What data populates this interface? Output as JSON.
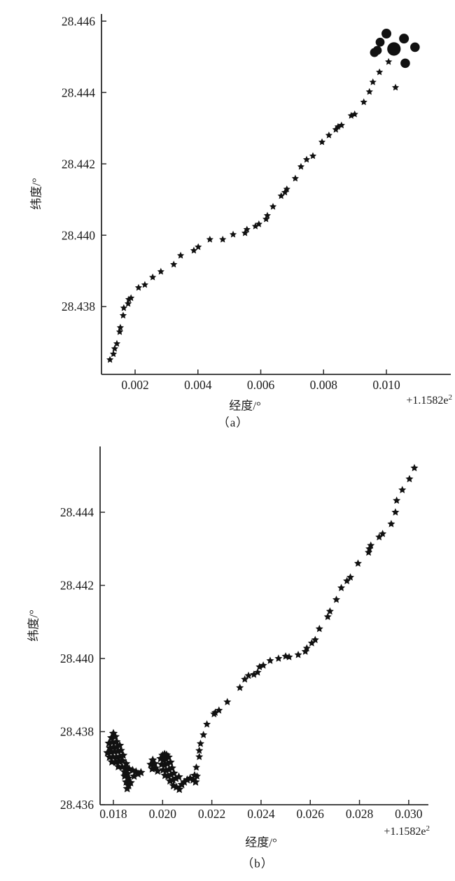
{
  "figure": {
    "background": "#ffffff",
    "text_color": "#1a1a1a",
    "axis_color": "#2b2b2b",
    "marker_color": "#111111"
  },
  "chart_data": [
    {
      "id": "a",
      "type": "scatter",
      "caption": "（a）",
      "xlabel": "经度/°",
      "ylabel": "纬度/°",
      "x_offset_base": "+1.1582e",
      "x_offset_exp": "2",
      "grid": false,
      "legend": null,
      "xlim": [
        0.00093,
        0.01205
      ],
      "ylim": [
        28.4361,
        28.4462
      ],
      "xticks": [
        0.002,
        0.004,
        0.006,
        0.008,
        0.01
      ],
      "xtick_labels": [
        "0.002",
        "0.004",
        "0.006",
        "0.008",
        "0.010"
      ],
      "yticks": [
        28.438,
        28.44,
        28.442,
        28.444,
        28.446
      ],
      "ytick_labels": [
        "28.438",
        "28.440",
        "28.442",
        "28.444",
        "28.446"
      ],
      "series": [
        {
          "name": "trajectory-stars",
          "marker": "star",
          "size": 5.4,
          "points": [
            [
              0.0012,
              28.43651
            ],
            [
              0.00131,
              28.43667
            ],
            [
              0.00135,
              28.43682
            ],
            [
              0.00142,
              28.43696
            ],
            [
              0.00151,
              28.43729
            ],
            [
              0.00153,
              28.43741
            ],
            [
              0.00162,
              28.43775
            ],
            [
              0.00164,
              28.43796
            ],
            [
              0.00178,
              28.43808
            ],
            [
              0.0018,
              28.4382
            ],
            [
              0.00187,
              28.43824
            ],
            [
              0.00211,
              28.43853
            ],
            [
              0.00231,
              28.43861
            ],
            [
              0.00256,
              28.43882
            ],
            [
              0.00282,
              28.43898
            ],
            [
              0.00323,
              28.43918
            ],
            [
              0.00345,
              28.43943
            ],
            [
              0.00387,
              28.43957
            ],
            [
              0.00401,
              28.43967
            ],
            [
              0.00438,
              28.43988
            ],
            [
              0.00479,
              28.43988
            ],
            [
              0.00512,
              28.44002
            ],
            [
              0.0055,
              28.44006
            ],
            [
              0.00556,
              28.44016
            ],
            [
              0.00583,
              28.44025
            ],
            [
              0.00594,
              28.44031
            ],
            [
              0.00617,
              28.44045
            ],
            [
              0.00621,
              28.44055
            ],
            [
              0.00639,
              28.4408
            ],
            [
              0.00665,
              28.4411
            ],
            [
              0.00677,
              28.4412
            ],
            [
              0.00683,
              28.44129
            ],
            [
              0.0071,
              28.44159
            ],
            [
              0.00728,
              28.44192
            ],
            [
              0.00746,
              28.44212
            ],
            [
              0.00766,
              28.44222
            ],
            [
              0.00795,
              28.44261
            ],
            [
              0.00817,
              28.4428
            ],
            [
              0.00839,
              28.44296
            ],
            [
              0.00846,
              28.44304
            ],
            [
              0.00857,
              28.44308
            ],
            [
              0.00888,
              28.44335
            ],
            [
              0.00899,
              28.44339
            ],
            [
              0.00928,
              28.44373
            ],
            [
              0.00946,
              28.44402
            ],
            [
              0.00957,
              28.44429
            ],
            [
              0.00978,
              28.44457
            ],
            [
              0.01007,
              28.44486
            ],
            [
              0.01029,
              28.44414
            ]
          ]
        },
        {
          "name": "endpoint-circles",
          "marker": "circle",
          "size": 6.4,
          "sizes": [
            6.4,
            6.4,
            6.4,
            7.0,
            9.6,
            7.0,
            6.8,
            6.8
          ],
          "points": [
            [
              0.00962,
              28.44512
            ],
            [
              0.00971,
              28.44518
            ],
            [
              0.0098,
              28.44541
            ],
            [
              0.01,
              28.44565
            ],
            [
              0.01024,
              28.44522
            ],
            [
              0.01056,
              28.44551
            ],
            [
              0.0106,
              28.44482
            ],
            [
              0.01091,
              28.44527
            ]
          ]
        }
      ]
    },
    {
      "id": "b",
      "type": "scatter",
      "caption": "（b）",
      "xlabel": "经度/°",
      "ylabel": "纬度/°",
      "x_offset_base": "+1.1582e",
      "x_offset_exp": "2",
      "grid": false,
      "legend": null,
      "xlim": [
        0.01746,
        0.0308
      ],
      "ylim": [
        28.436,
        28.4458
      ],
      "xticks": [
        0.018,
        0.02,
        0.022,
        0.024,
        0.026,
        0.028,
        0.03
      ],
      "xtick_labels": [
        "0.018",
        "0.020",
        "0.022",
        "0.024",
        "0.026",
        "0.028",
        "0.030"
      ],
      "yticks": [
        28.436,
        28.438,
        28.44,
        28.442,
        28.444
      ],
      "ytick_labels": [
        "28.436",
        "28.438",
        "28.440",
        "28.442",
        "28.444"
      ],
      "series": [
        {
          "name": "trajectory-stars",
          "marker": "star",
          "size": 5.8,
          "points": [
            [
              0.0214,
              28.43678
            ],
            [
              0.02137,
              28.43702
            ],
            [
              0.02149,
              28.43731
            ],
            [
              0.02149,
              28.43748
            ],
            [
              0.02154,
              28.43767
            ],
            [
              0.02166,
              28.43791
            ],
            [
              0.0218,
              28.4382
            ],
            [
              0.02209,
              28.43848
            ],
            [
              0.02214,
              28.43852
            ],
            [
              0.02229,
              28.43858
            ],
            [
              0.02263,
              28.43881
            ],
            [
              0.02314,
              28.4392
            ],
            [
              0.02334,
              28.43943
            ],
            [
              0.02349,
              28.43953
            ],
            [
              0.02371,
              28.43956
            ],
            [
              0.02386,
              28.43962
            ],
            [
              0.02394,
              28.43977
            ],
            [
              0.02409,
              28.43981
            ],
            [
              0.02437,
              28.43994
            ],
            [
              0.02471,
              28.44
            ],
            [
              0.025,
              28.44006
            ],
            [
              0.02514,
              28.44004
            ],
            [
              0.02551,
              28.4401
            ],
            [
              0.0258,
              28.44019
            ],
            [
              0.02586,
              28.44028
            ],
            [
              0.02606,
              28.44042
            ],
            [
              0.0262,
              28.44051
            ],
            [
              0.02637,
              28.44081
            ],
            [
              0.02671,
              28.44114
            ],
            [
              0.0268,
              28.44129
            ],
            [
              0.02706,
              28.44161
            ],
            [
              0.02726,
              28.44193
            ],
            [
              0.02749,
              28.44212
            ],
            [
              0.02763,
              28.44222
            ],
            [
              0.02794,
              28.4426
            ],
            [
              0.02837,
              28.4429
            ],
            [
              0.0284,
              28.443
            ],
            [
              0.02846,
              28.44309
            ],
            [
              0.0288,
              28.44332
            ],
            [
              0.02894,
              28.44341
            ],
            [
              0.02929,
              28.44368
            ],
            [
              0.02946,
              28.444
            ],
            [
              0.02951,
              28.44432
            ],
            [
              0.02974,
              28.44461
            ],
            [
              0.03003,
              28.44491
            ],
            [
              0.03023,
              28.44521
            ]
          ]
        },
        {
          "name": "start-cluster-blob",
          "marker": "star",
          "size": 6.5,
          "points": [
            [
              0.018,
              28.43795
            ],
            [
              0.01792,
              28.43783
            ],
            [
              0.01808,
              28.43786
            ],
            [
              0.01782,
              28.43768
            ],
            [
              0.01796,
              28.43771
            ],
            [
              0.01812,
              28.43772
            ],
            [
              0.01786,
              28.43755
            ],
            [
              0.018,
              28.43757
            ],
            [
              0.01814,
              28.43758
            ],
            [
              0.01826,
              28.43762
            ],
            [
              0.01776,
              28.43742
            ],
            [
              0.0179,
              28.43744
            ],
            [
              0.01804,
              28.43745
            ],
            [
              0.01818,
              28.43746
            ],
            [
              0.0183,
              28.43748
            ],
            [
              0.01784,
              28.4373
            ],
            [
              0.01798,
              28.43731
            ],
            [
              0.01812,
              28.4373
            ],
            [
              0.01826,
              28.43732
            ],
            [
              0.0184,
              28.43735
            ],
            [
              0.01794,
              28.43717
            ],
            [
              0.0181,
              28.43716
            ],
            [
              0.01824,
              28.43718
            ],
            [
              0.01838,
              28.4372
            ],
            [
              0.01852,
              28.43712
            ],
            [
              0.0182,
              28.43704
            ],
            [
              0.01836,
              28.43703
            ],
            [
              0.0185,
              28.437
            ],
            [
              0.01864,
              28.43698
            ],
            [
              0.01878,
              28.43694
            ],
            [
              0.01892,
              28.4369
            ],
            [
              0.01845,
              28.4369
            ],
            [
              0.01858,
              28.43685
            ],
            [
              0.01846,
              28.43678
            ],
            [
              0.0186,
              28.43672
            ],
            [
              0.01852,
              28.43662
            ],
            [
              0.01862,
              28.43652
            ],
            [
              0.01856,
              28.43644
            ],
            [
              0.0187,
              28.4366
            ],
            [
              0.01884,
              28.43678
            ],
            [
              0.019,
              28.43684
            ],
            [
              0.01912,
              28.43688
            ],
            [
              0.01952,
              28.4371
            ],
            [
              0.0196,
              28.43722
            ],
            [
              0.01968,
              28.43712
            ],
            [
              0.01958,
              28.43698
            ],
            [
              0.0197,
              28.437
            ],
            [
              0.0198,
              28.43692
            ],
            [
              0.01992,
              28.43726
            ],
            [
              0.02,
              28.43735
            ],
            [
              0.02008,
              28.43738
            ],
            [
              0.02016,
              28.43736
            ],
            [
              0.02004,
              28.43722
            ],
            [
              0.02014,
              28.43724
            ],
            [
              0.02024,
              28.4373
            ],
            [
              0.01996,
              28.4371
            ],
            [
              0.02008,
              28.43708
            ],
            [
              0.0202,
              28.43712
            ],
            [
              0.02032,
              28.43716
            ],
            [
              0.02002,
              28.43695
            ],
            [
              0.02014,
              28.43694
            ],
            [
              0.02026,
              28.43696
            ],
            [
              0.02038,
              28.437
            ],
            [
              0.0201,
              28.4368
            ],
            [
              0.02022,
              28.43678
            ],
            [
              0.02034,
              28.43682
            ],
            [
              0.02046,
              28.43686
            ],
            [
              0.0203,
              28.43665
            ],
            [
              0.02042,
              28.43668
            ],
            [
              0.02054,
              28.43672
            ],
            [
              0.02066,
              28.43676
            ],
            [
              0.02044,
              28.43652
            ],
            [
              0.02056,
              28.43648
            ],
            [
              0.02068,
              28.43642
            ],
            [
              0.02078,
              28.43655
            ],
            [
              0.02088,
              28.43662
            ],
            [
              0.021,
              28.43668
            ],
            [
              0.02112,
              28.43672
            ],
            [
              0.02124,
              28.43668
            ],
            [
              0.02134,
              28.43662
            ],
            [
              0.0213,
              28.4368
            ]
          ]
        }
      ]
    }
  ]
}
